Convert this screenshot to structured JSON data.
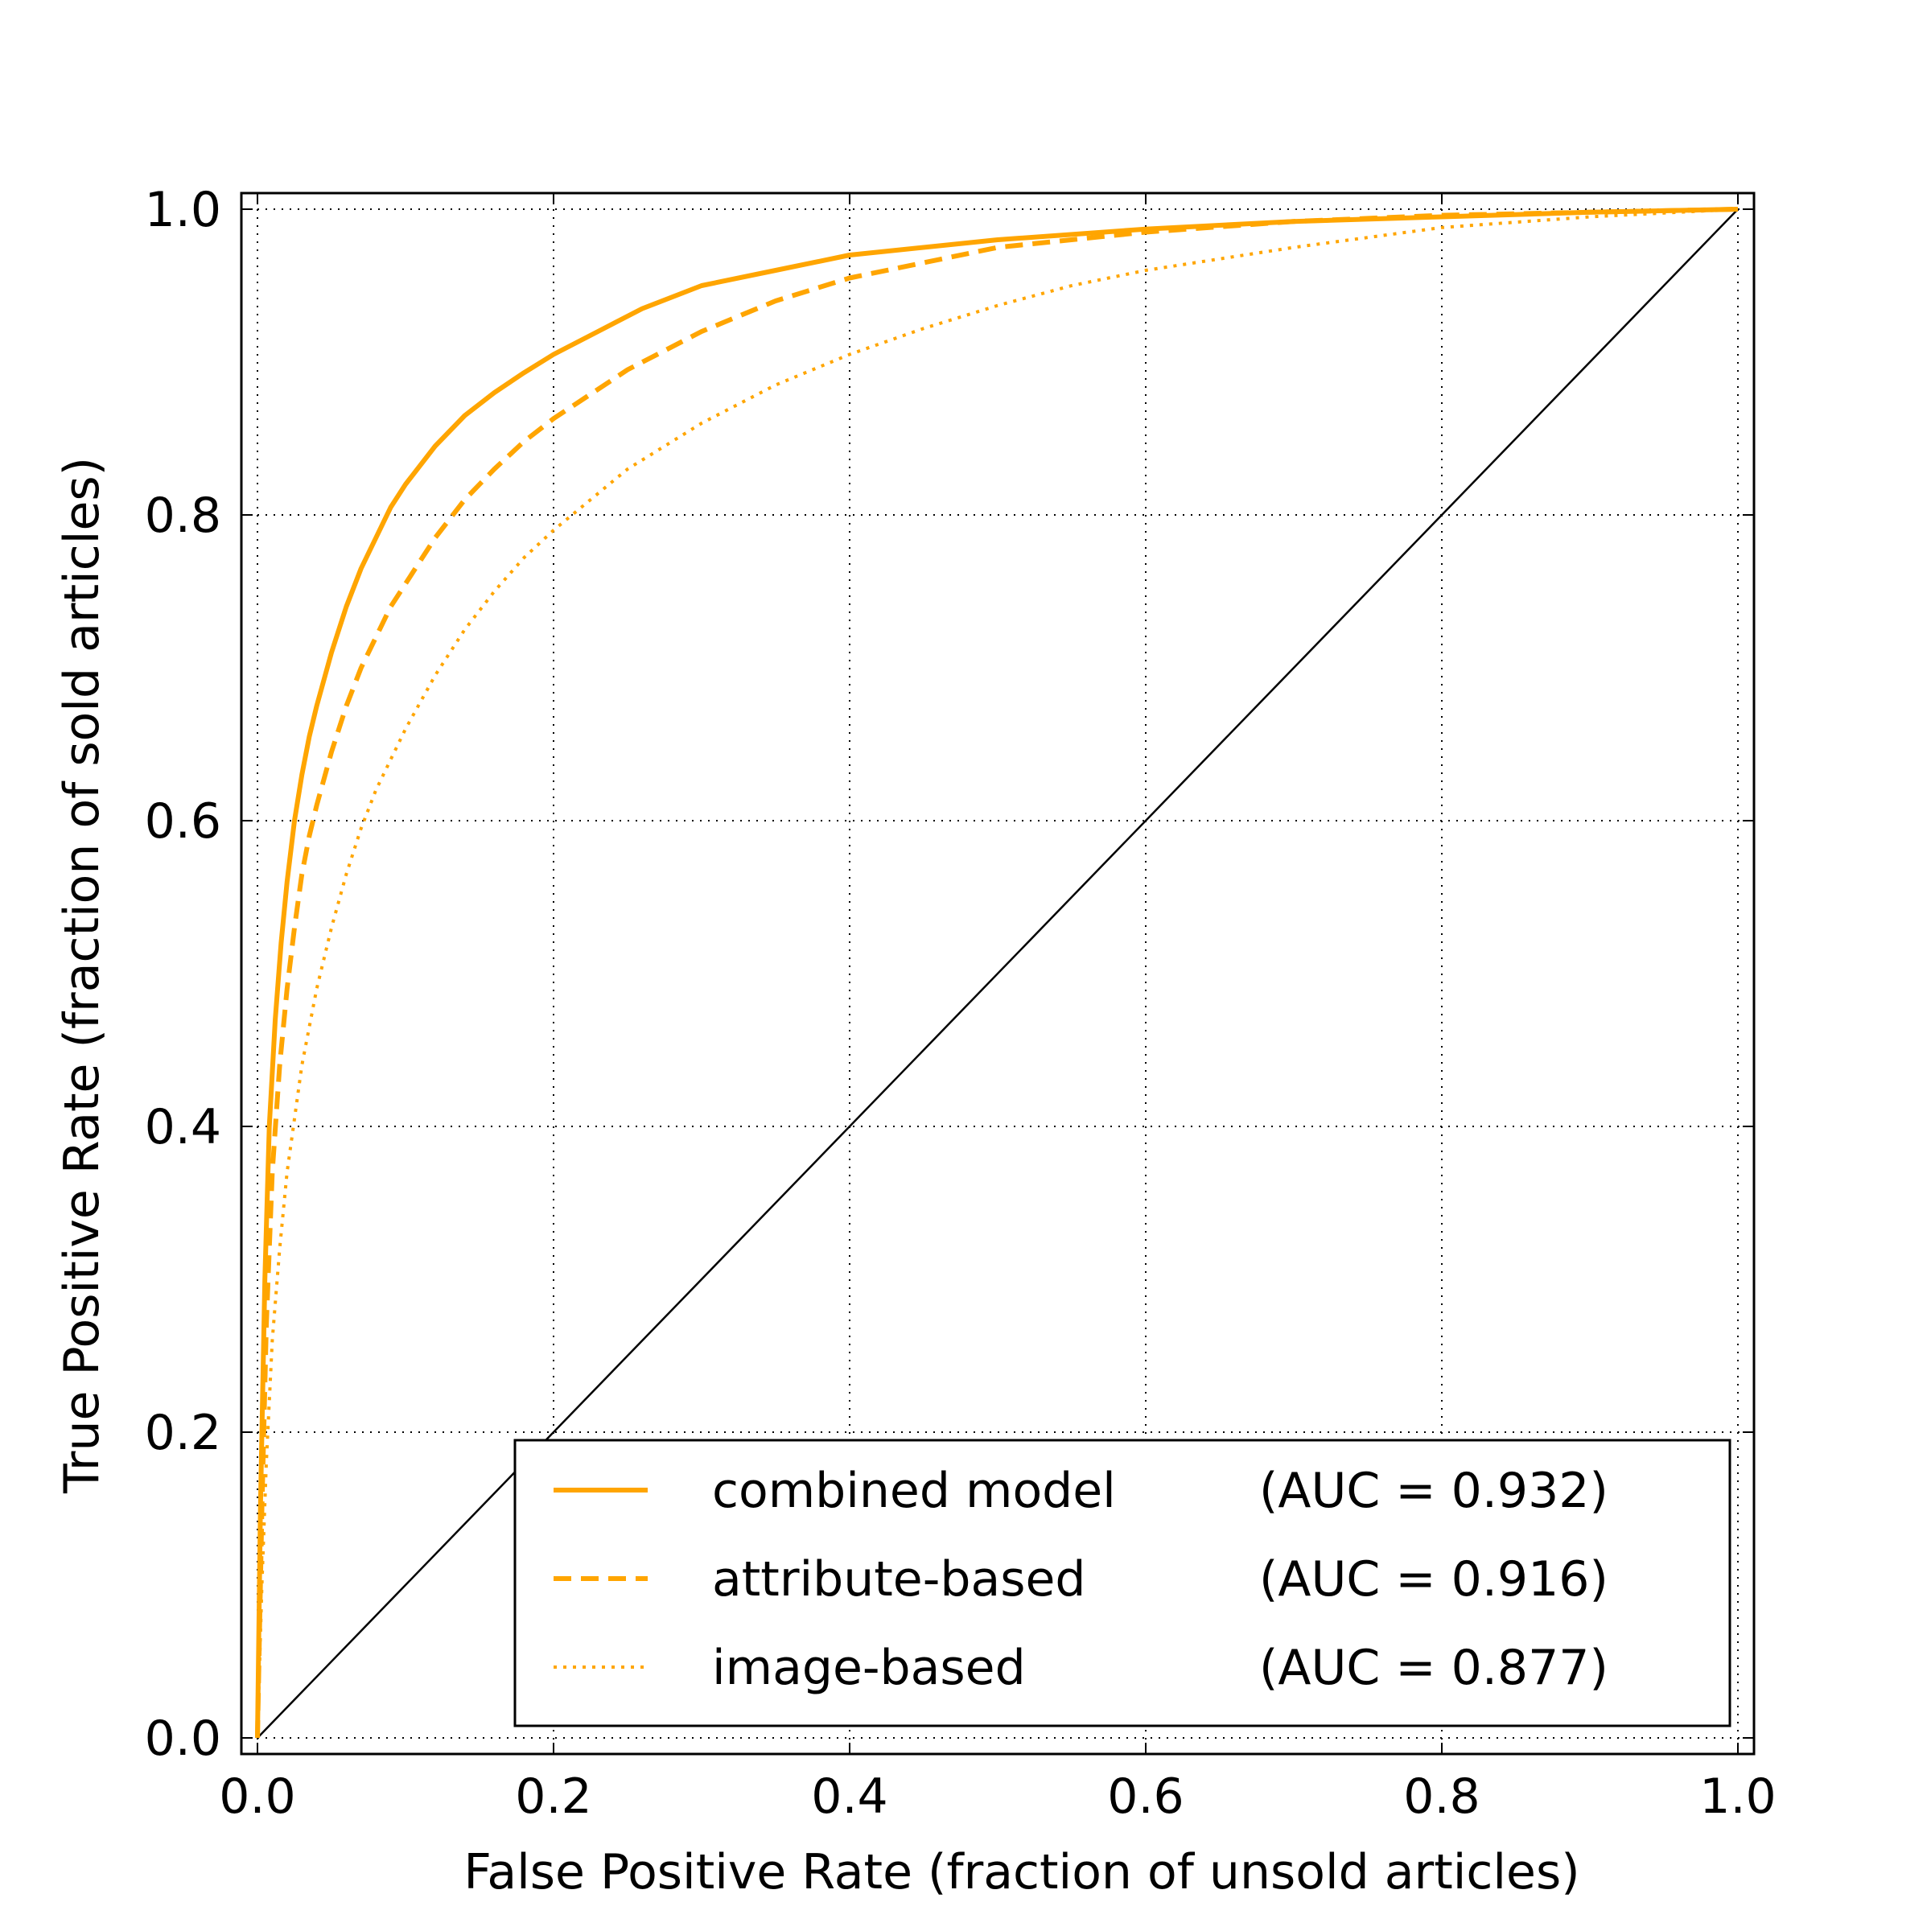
{
  "chart_data": {
    "type": "line",
    "title": "",
    "xlabel": "False Positive Rate (fraction of unsold articles)",
    "ylabel": "True Positive Rate (fraction of sold articles)",
    "xlim": [
      0.0,
      1.0
    ],
    "ylim": [
      0.0,
      1.0
    ],
    "xticks": [
      "0.0",
      "0.2",
      "0.4",
      "0.6",
      "0.8",
      "1.0"
    ],
    "yticks": [
      "0.0",
      "0.2",
      "0.4",
      "0.6",
      "0.8",
      "1.0"
    ],
    "grid": true,
    "grid_style": "dotted",
    "legend_position": "lower-right",
    "colors": {
      "series": "#FFA500",
      "diagonal": "#000000"
    },
    "series": [
      {
        "name": "combined model",
        "auc_label": "(AUC = 0.932)",
        "style": "solid",
        "x": [
          0,
          0.002,
          0.005,
          0.008,
          0.012,
          0.016,
          0.02,
          0.025,
          0.03,
          0.035,
          0.04,
          0.05,
          0.06,
          0.07,
          0.08,
          0.09,
          0.1,
          0.12,
          0.14,
          0.16,
          0.18,
          0.2,
          0.23,
          0.26,
          0.3,
          0.35,
          0.4,
          0.5,
          0.6,
          0.7,
          0.8,
          0.9,
          1.0
        ],
        "y": [
          0,
          0.15,
          0.3,
          0.4,
          0.47,
          0.52,
          0.56,
          0.6,
          0.63,
          0.655,
          0.675,
          0.71,
          0.74,
          0.765,
          0.785,
          0.805,
          0.82,
          0.845,
          0.865,
          0.88,
          0.893,
          0.905,
          0.92,
          0.935,
          0.95,
          0.96,
          0.97,
          0.98,
          0.987,
          0.992,
          0.995,
          0.998,
          1.0
        ]
      },
      {
        "name": "attribute-based",
        "auc_label": "(AUC = 0.916)",
        "style": "dashed",
        "x": [
          0,
          0.003,
          0.006,
          0.01,
          0.015,
          0.02,
          0.025,
          0.03,
          0.035,
          0.04,
          0.05,
          0.06,
          0.07,
          0.08,
          0.09,
          0.1,
          0.12,
          0.14,
          0.16,
          0.18,
          0.2,
          0.25,
          0.3,
          0.35,
          0.4,
          0.45,
          0.5,
          0.6,
          0.7,
          0.8,
          0.9,
          1.0
        ],
        "y": [
          0,
          0.15,
          0.27,
          0.37,
          0.44,
          0.49,
          0.53,
          0.565,
          0.59,
          0.61,
          0.645,
          0.675,
          0.7,
          0.72,
          0.74,
          0.755,
          0.785,
          0.81,
          0.83,
          0.848,
          0.863,
          0.895,
          0.92,
          0.94,
          0.955,
          0.965,
          0.975,
          0.985,
          0.992,
          0.996,
          0.998,
          1.0
        ]
      },
      {
        "name": "image-based",
        "auc_label": "(AUC = 0.877)",
        "style": "dotted",
        "x": [
          0,
          0.003,
          0.006,
          0.01,
          0.015,
          0.02,
          0.03,
          0.04,
          0.05,
          0.06,
          0.07,
          0.08,
          0.1,
          0.12,
          0.14,
          0.16,
          0.18,
          0.2,
          0.25,
          0.3,
          0.35,
          0.4,
          0.45,
          0.5,
          0.55,
          0.6,
          0.7,
          0.8,
          0.9,
          1.0
        ],
        "y": [
          0,
          0.1,
          0.18,
          0.26,
          0.32,
          0.37,
          0.44,
          0.49,
          0.53,
          0.565,
          0.595,
          0.62,
          0.66,
          0.695,
          0.725,
          0.75,
          0.772,
          0.79,
          0.83,
          0.86,
          0.885,
          0.905,
          0.922,
          0.937,
          0.95,
          0.96,
          0.975,
          0.988,
          0.995,
          1.0
        ]
      },
      {
        "name": "",
        "style": "diagonal",
        "x": [
          0,
          1
        ],
        "y": [
          0,
          1
        ]
      }
    ]
  }
}
